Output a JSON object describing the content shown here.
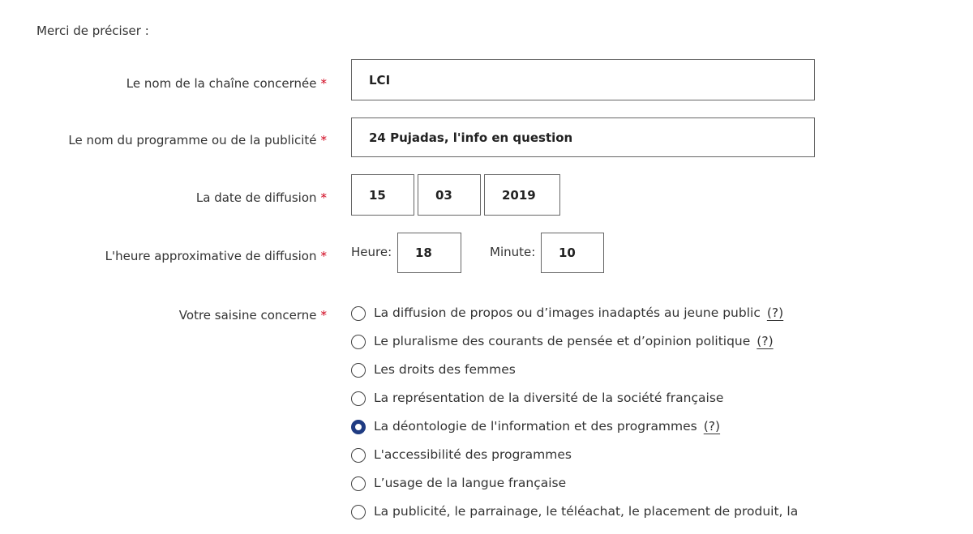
{
  "intro": "Merci de préciser :",
  "fields": {
    "channel": {
      "label": "Le nom de la chaîne concernée",
      "value": "LCI"
    },
    "program": {
      "label": "Le nom du programme ou de la publicité",
      "value": "24 Pujadas, l'info en question"
    },
    "date": {
      "label": "La date de diffusion",
      "day": "15",
      "month": "03",
      "year": "2019"
    },
    "time": {
      "label": "L'heure approximative de diffusion",
      "hour_label": "Heure:",
      "hour": "18",
      "minute_label": "Minute:",
      "minute": "10"
    },
    "subject": {
      "label": "Votre saisine concerne",
      "options": [
        {
          "label": "La diffusion de propos ou d’images inadaptés au jeune public",
          "help": "(?)",
          "selected": false
        },
        {
          "label": "Le pluralisme des courants de pensée et d’opinion politique",
          "help": "(?)",
          "selected": false
        },
        {
          "label": "Les droits des femmes",
          "selected": false
        },
        {
          "label": "La représentation de la diversité de la société française",
          "selected": false
        },
        {
          "label": "La déontologie de l'information et des programmes",
          "help": "(?)",
          "selected": true
        },
        {
          "label": "L'accessibilité des programmes",
          "selected": false
        },
        {
          "label": "L’usage de la langue française",
          "selected": false
        },
        {
          "label": "La publicité, le parrainage, le téléachat, le placement de produit, la",
          "selected": false
        }
      ]
    }
  },
  "required_mark": "*",
  "colors": {
    "required": "#d0021b",
    "radio_selected": "#1f3b82"
  }
}
